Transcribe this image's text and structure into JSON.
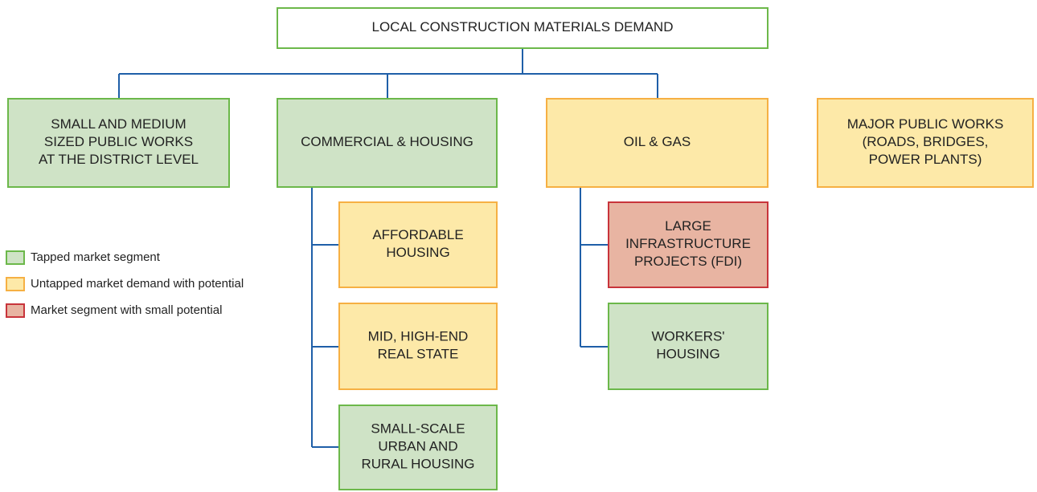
{
  "root": {
    "label": [
      "LOCAL CONSTRUCTION MATERIALS DEMAND"
    ],
    "fill": "#ffffff",
    "stroke": "#6cb84a"
  },
  "nodes": [
    {
      "label": [
        "SMALL AND MEDIUM",
        "SIZED PUBLIC WORKS",
        "AT THE DISTRICT LEVEL"
      ],
      "fill": "#cfe3c6",
      "stroke": "#6cb84a"
    },
    {
      "label": [
        "COMMERCIAL & HOUSING"
      ],
      "fill": "#cfe3c6",
      "stroke": "#6cb84a"
    },
    {
      "label": [
        "OIL & GAS"
      ],
      "fill": "#fde9a8",
      "stroke": "#f6b043"
    },
    {
      "label": [
        "MAJOR PUBLIC WORKS",
        "(ROADS, BRIDGES,",
        "POWER PLANTS)"
      ],
      "fill": "#fde9a8",
      "stroke": "#f6b043"
    },
    {
      "label": [
        "AFFORDABLE",
        "HOUSING"
      ],
      "fill": "#fde9a8",
      "stroke": "#f6b043"
    },
    {
      "label": [
        "MID, HIGH-END",
        "REAL STATE"
      ],
      "fill": "#fde9a8",
      "stroke": "#f6b043"
    },
    {
      "label": [
        "SMALL-SCALE",
        "URBAN AND",
        "RURAL HOUSING"
      ],
      "fill": "#cfe3c6",
      "stroke": "#6cb84a"
    },
    {
      "label": [
        "LARGE",
        "INFRASTRUCTURE",
        "PROJECTS (FDI)"
      ],
      "fill": "#e8b4a2",
      "stroke": "#c8343b"
    },
    {
      "label": [
        "WORKERS'",
        "HOUSING"
      ],
      "fill": "#cfe3c6",
      "stroke": "#6cb84a"
    }
  ],
  "legend": [
    {
      "label": "Tapped market segment",
      "fill": "#cfe3c6",
      "stroke": "#6cb84a"
    },
    {
      "label": "Untapped market demand with potential",
      "fill": "#fde9a8",
      "stroke": "#f6b043"
    },
    {
      "label": "Market segment with small potential",
      "fill": "#e8b4a2",
      "stroke": "#c8343b"
    }
  ]
}
